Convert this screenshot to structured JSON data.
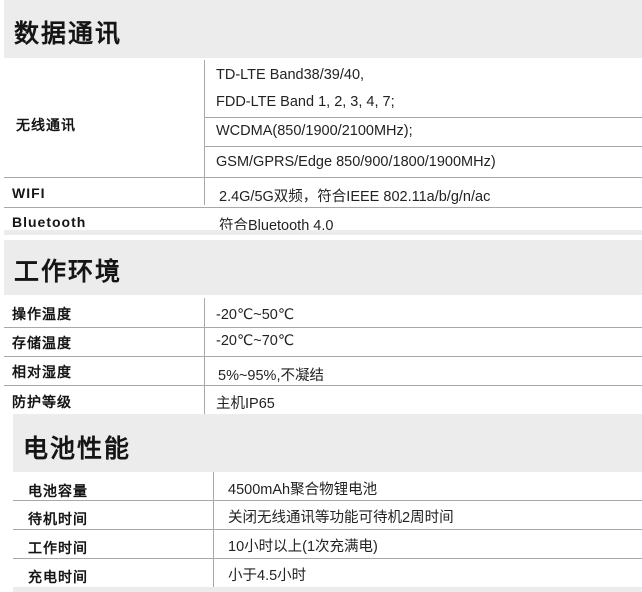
{
  "sections": [
    {
      "title": "数据通讯",
      "rows": [
        {
          "label": "无线通讯",
          "values": [
            "TD-LTE Band38/39/40,",
            "FDD-LTE Band 1, 2, 3, 4, 7;",
            "WCDMA(850/1900/2100MHz);",
            "GSM/GPRS/Edge 850/900/1800/1900MHz)"
          ]
        },
        {
          "label": "WIFI",
          "value": "2.4G/5G双频，符合IEEE 802.11a/b/g/n/ac"
        },
        {
          "label": "Bluetooth",
          "value": "符合Bluetooth 4.0"
        }
      ]
    },
    {
      "title": "工作环境",
      "rows": [
        {
          "label": "操作温度",
          "value": "-20℃~50℃"
        },
        {
          "label": "存储温度",
          "value": "-20℃~70℃"
        },
        {
          "label": "相对湿度",
          "value": "5%~95%,不凝结"
        },
        {
          "label": "防护等级",
          "value": "主机IP65"
        }
      ]
    },
    {
      "title": "电池性能",
      "rows": [
        {
          "label": "电池容量",
          "value": "4500mAh聚合物锂电池"
        },
        {
          "label": "待机时间",
          "value": "关闭无线通讯等功能可待机2周时间"
        },
        {
          "label": "工作时间",
          "value": "10小时以上(1次充满电)"
        },
        {
          "label": "充电时间",
          "value": "小于4.5小时"
        }
      ]
    }
  ]
}
